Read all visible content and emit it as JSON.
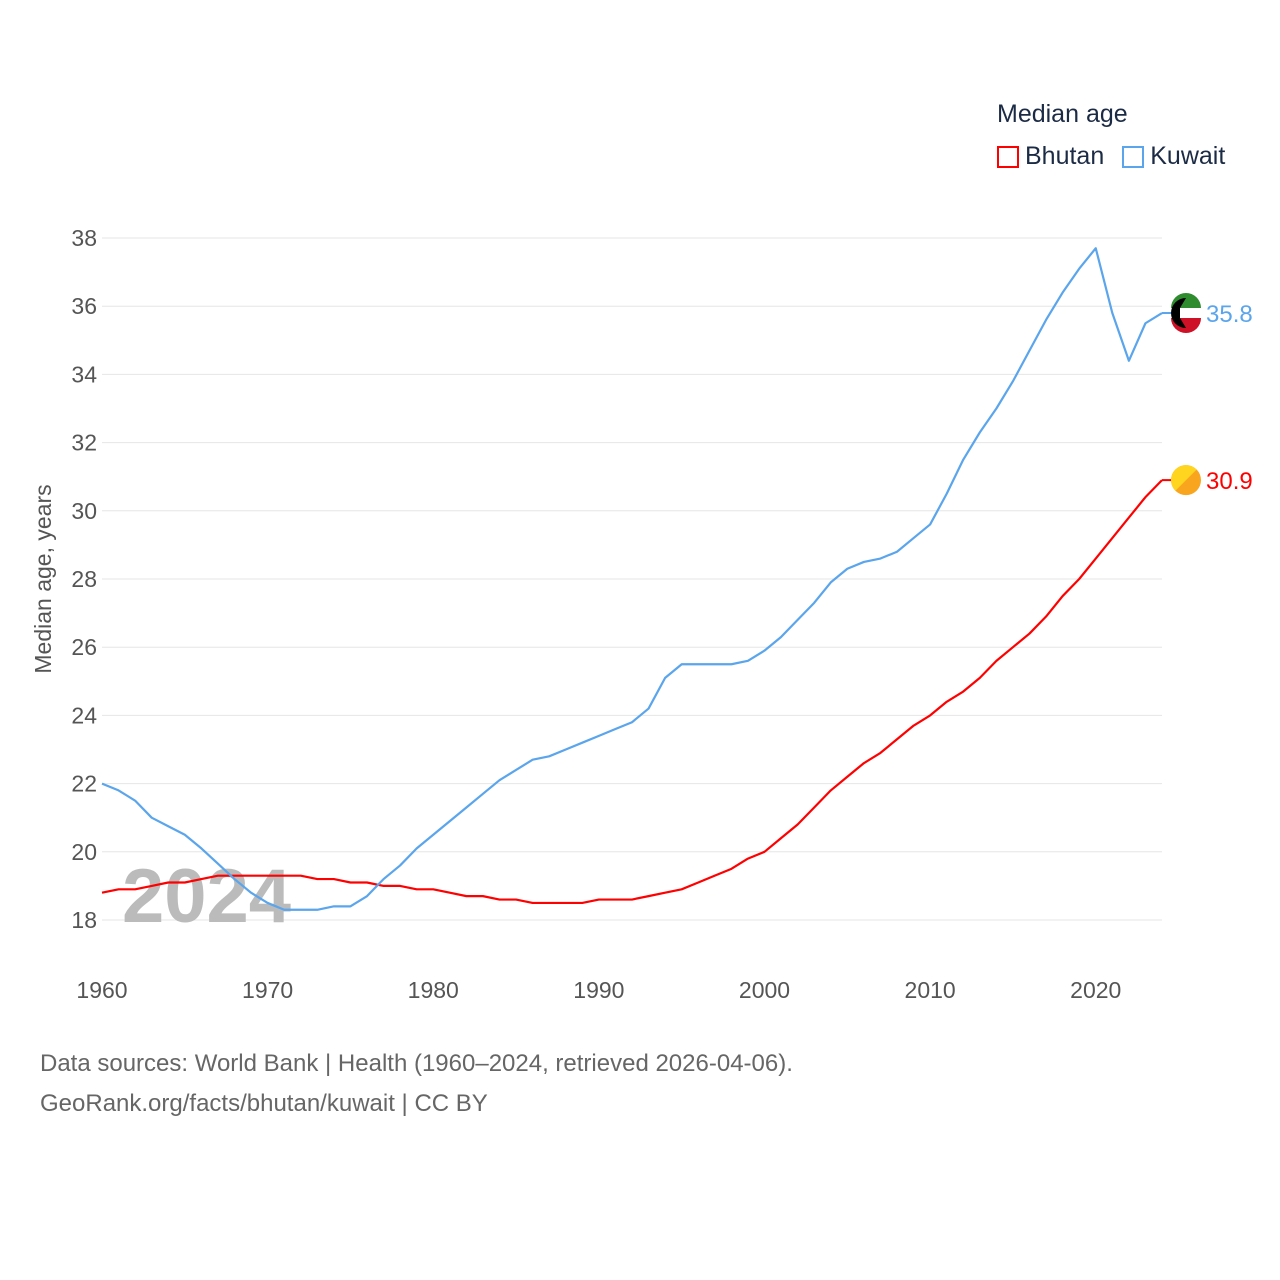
{
  "chart_data": {
    "type": "line",
    "title": "Median age",
    "ylabel": "Median age, years",
    "xlabel": "",
    "xlim": [
      1960,
      2024
    ],
    "ylim": [
      17,
      38.5
    ],
    "yticks": [
      18,
      20,
      22,
      24,
      26,
      28,
      30,
      32,
      34,
      36,
      38
    ],
    "xticks": [
      1960,
      1970,
      1980,
      1990,
      2000,
      2010,
      2020
    ],
    "grid": true,
    "legend_placement": "top-right",
    "watermark_year": "2024",
    "x": [
      1960,
      1961,
      1962,
      1963,
      1964,
      1965,
      1966,
      1967,
      1968,
      1969,
      1970,
      1971,
      1972,
      1973,
      1974,
      1975,
      1976,
      1977,
      1978,
      1979,
      1980,
      1981,
      1982,
      1983,
      1984,
      1985,
      1986,
      1987,
      1988,
      1989,
      1990,
      1991,
      1992,
      1993,
      1994,
      1995,
      1996,
      1997,
      1998,
      1999,
      2000,
      2001,
      2002,
      2003,
      2004,
      2005,
      2006,
      2007,
      2008,
      2009,
      2010,
      2011,
      2012,
      2013,
      2014,
      2015,
      2016,
      2017,
      2018,
      2019,
      2020,
      2021,
      2022,
      2023,
      2024
    ],
    "series": [
      {
        "name": "Bhutan",
        "color": "#ff0000",
        "end_label": "30.9",
        "values": [
          18.8,
          18.9,
          18.9,
          19.0,
          19.1,
          19.1,
          19.2,
          19.3,
          19.3,
          19.3,
          19.3,
          19.3,
          19.3,
          19.2,
          19.2,
          19.1,
          19.1,
          19.0,
          19.0,
          18.9,
          18.9,
          18.8,
          18.7,
          18.7,
          18.6,
          18.6,
          18.5,
          18.5,
          18.5,
          18.5,
          18.6,
          18.6,
          18.6,
          18.7,
          18.8,
          18.9,
          19.1,
          19.3,
          19.5,
          19.8,
          20.0,
          20.4,
          20.8,
          21.3,
          21.8,
          22.2,
          22.6,
          22.9,
          23.3,
          23.7,
          24.0,
          24.4,
          24.7,
          25.1,
          25.6,
          26.0,
          26.4,
          26.9,
          27.5,
          28.0,
          28.6,
          29.2,
          29.8,
          30.4,
          30.9
        ]
      },
      {
        "name": "Kuwait",
        "color": "#5aa5ec",
        "end_label": "35.8",
        "values": [
          22.0,
          21.8,
          21.5,
          21.0,
          20.75,
          20.5,
          20.1,
          19.65,
          19.2,
          18.8,
          18.5,
          18.3,
          18.3,
          18.3,
          18.4,
          18.4,
          18.7,
          19.2,
          19.6,
          20.1,
          20.5,
          20.9,
          21.3,
          21.7,
          22.1,
          22.4,
          22.7,
          22.8,
          23.0,
          23.2,
          23.4,
          23.6,
          23.8,
          24.2,
          25.1,
          25.5,
          25.5,
          25.5,
          25.5,
          25.6,
          25.9,
          26.3,
          26.8,
          27.3,
          27.9,
          28.3,
          28.5,
          28.6,
          28.8,
          29.2,
          29.6,
          30.5,
          31.5,
          32.3,
          33.0,
          33.8,
          34.7,
          35.6,
          36.4,
          37.1,
          37.7,
          35.8,
          34.4,
          35.5,
          35.8
        ]
      }
    ]
  },
  "footer": {
    "line1": "Data sources: World Bank | Health (1960–2024, retrieved 2026-04-06).",
    "line2": "GeoRank.org/facts/bhutan/kuwait | CC BY"
  }
}
